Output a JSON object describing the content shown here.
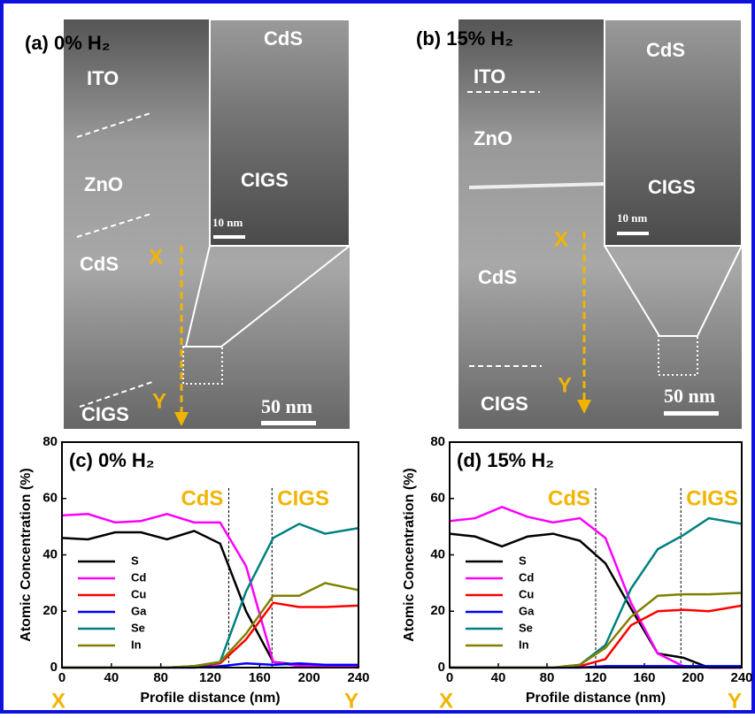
{
  "images": [
    {
      "label": "(a) 0% H₂",
      "layers": [
        "ITO",
        "ZnO",
        "CdS",
        "CIGS"
      ],
      "inset_layers": [
        "CdS",
        "CIGS"
      ],
      "inset_scale": "10 nm",
      "scale": "50 nm",
      "markers": [
        "X",
        "Y"
      ]
    },
    {
      "label": "(b) 15% H₂",
      "layers": [
        "ITO",
        "ZnO",
        "CdS",
        "CIGS"
      ],
      "inset_layers": [
        "CdS",
        "CIGS"
      ],
      "inset_scale": "10 nm",
      "scale": "50 nm",
      "markers": [
        "X",
        "Y"
      ]
    }
  ],
  "chart_data": [
    {
      "type": "line",
      "title": "(c) 0% H₂",
      "x_label": "Profile distance (nm)",
      "y_label": "Atomic Concentration (%)",
      "x": [
        0,
        21,
        43,
        64,
        85,
        107,
        128,
        149,
        171,
        192,
        213,
        240
      ],
      "series": [
        {
          "name": "S",
          "color": "#000000",
          "values": [
            46,
            45.5,
            48,
            48,
            45.5,
            48.5,
            44,
            20,
            2,
            1,
            0.5,
            0.5
          ]
        },
        {
          "name": "Cd",
          "color": "#ff00ff",
          "values": [
            54,
            54.5,
            51.5,
            52,
            54.5,
            51.5,
            51.5,
            36,
            2,
            0.5,
            0.5,
            0.5
          ]
        },
        {
          "name": "Cu",
          "color": "#ff0000",
          "values": [
            0,
            0,
            0,
            0,
            0,
            0.5,
            1.5,
            10,
            23,
            21.5,
            21.5,
            22
          ]
        },
        {
          "name": "Ga",
          "color": "#0000ff",
          "values": [
            0,
            0,
            0,
            0,
            0,
            0,
            0.5,
            1.5,
            1,
            1.5,
            1,
            1
          ]
        },
        {
          "name": "Se",
          "color": "#008080",
          "values": [
            0,
            0,
            0,
            0,
            0,
            0.5,
            2,
            27,
            46,
            51,
            47.5,
            49.5
          ]
        },
        {
          "name": "In",
          "color": "#808000",
          "values": [
            0,
            0,
            0,
            0,
            0,
            0.5,
            2,
            12,
            25.5,
            25.5,
            30,
            27.5
          ]
        }
      ],
      "xlim": [
        0,
        240
      ],
      "xticks": [
        0,
        40,
        80,
        120,
        160,
        200,
        240
      ],
      "ylim": [
        0,
        80
      ],
      "yticks": [
        0,
        20,
        40,
        60,
        80
      ],
      "annotations": [
        "CdS",
        "CIGS"
      ],
      "boundaries": [
        135,
        170
      ],
      "endpoints": [
        "X",
        "Y"
      ],
      "legend": "lower left"
    },
    {
      "type": "line",
      "title": "(d) 15% H₂",
      "x_label": "Profile distance (nm)",
      "y_label": "Atomic Concentration (%)",
      "x": [
        0,
        21,
        43,
        64,
        85,
        107,
        128,
        149,
        171,
        192,
        213,
        240
      ],
      "series": [
        {
          "name": "S",
          "color": "#000000",
          "values": [
            47.5,
            46.5,
            43,
            46.5,
            47.5,
            45,
            37,
            21,
            5,
            3.5,
            0,
            0
          ]
        },
        {
          "name": "Cd",
          "color": "#ff00ff",
          "values": [
            52,
            53,
            57,
            53.5,
            51.5,
            53,
            46,
            23,
            5,
            0.5,
            0,
            0
          ]
        },
        {
          "name": "Cu",
          "color": "#ff0000",
          "values": [
            0,
            0,
            0,
            0,
            0,
            0.5,
            3,
            15,
            20,
            20.5,
            20,
            22
          ]
        },
        {
          "name": "Ga",
          "color": "#0000ff",
          "values": [
            0,
            0,
            0,
            0,
            0,
            0,
            0.5,
            0.5,
            0.5,
            0.5,
            0.5,
            0.5
          ]
        },
        {
          "name": "Se",
          "color": "#008080",
          "values": [
            0,
            0,
            0,
            0,
            0,
            1,
            8,
            28,
            42,
            47,
            53,
            51
          ]
        },
        {
          "name": "In",
          "color": "#808000",
          "values": [
            0,
            0,
            0,
            0,
            0,
            1,
            7,
            18,
            25.5,
            26,
            26,
            26.5
          ]
        }
      ],
      "xlim": [
        0,
        240
      ],
      "xticks": [
        0,
        40,
        80,
        120,
        160,
        200,
        240
      ],
      "ylim": [
        0,
        80
      ],
      "yticks": [
        0,
        20,
        40,
        60,
        80
      ],
      "annotations": [
        "CdS",
        "CIGS"
      ],
      "boundaries": [
        120,
        190
      ],
      "endpoints": [
        "X",
        "Y"
      ],
      "legend": "lower left"
    }
  ]
}
